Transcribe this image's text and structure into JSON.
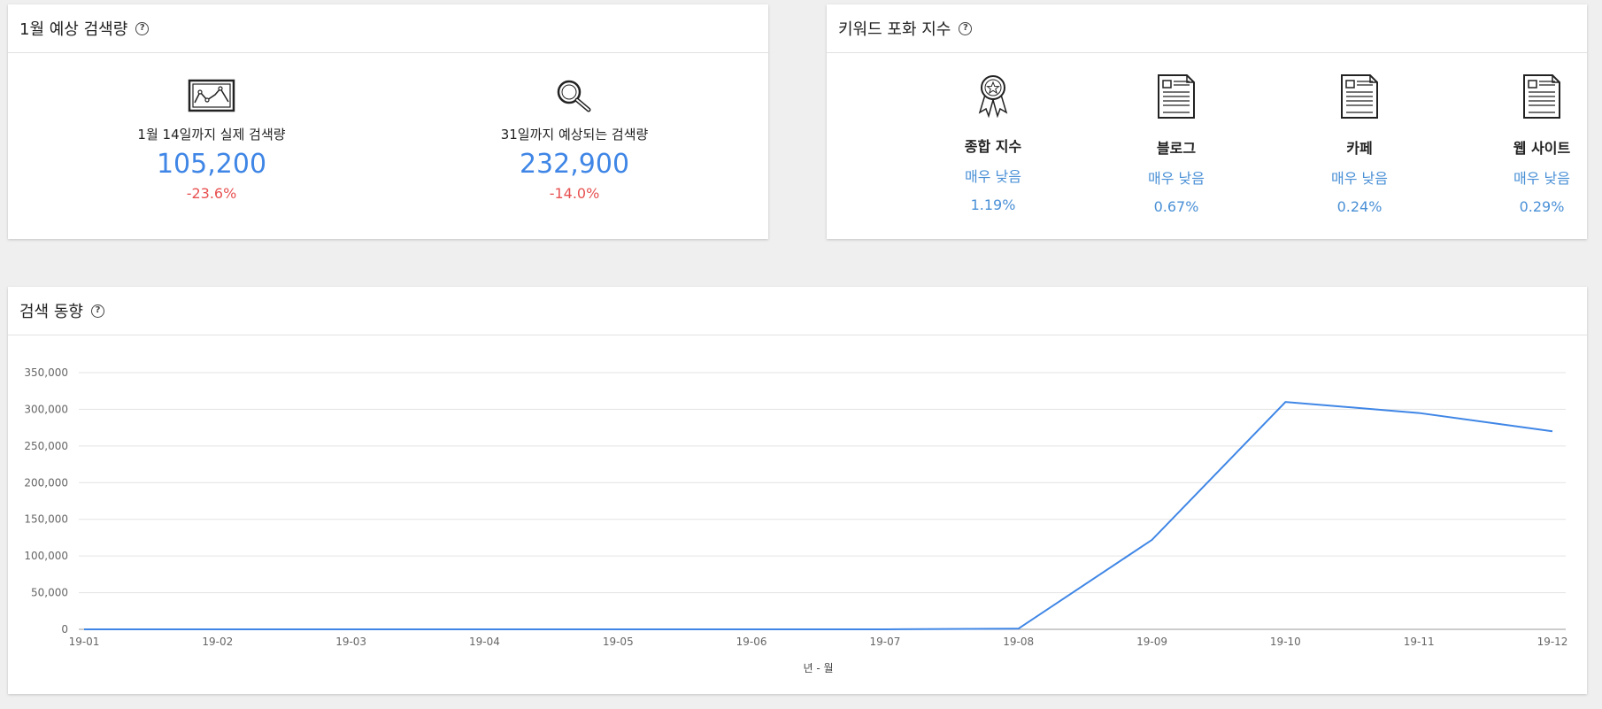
{
  "forecast": {
    "title": "1월 예상 검색량",
    "help": "?",
    "actual": {
      "label": "1월 14일까지 실제 검색량",
      "value": "105,200",
      "delta": "-23.6%",
      "icon": "line-chart-frame-icon"
    },
    "predicted": {
      "label": "31일까지 예상되는 검색량",
      "value": "232,900",
      "delta": "-14.0%",
      "icon": "magnifier-icon"
    },
    "colors": {
      "value": "#3f86e6",
      "delta": "#e85050"
    }
  },
  "saturation": {
    "title": "키워드 포화 지수",
    "help": "?",
    "items": [
      {
        "label": "종합 지수",
        "level": "매우 낮음",
        "pct": "1.19%",
        "icon": "award-ribbon-icon"
      },
      {
        "label": "블로그",
        "level": "매우 낮음",
        "pct": "0.67%",
        "icon": "document-icon"
      },
      {
        "label": "카페",
        "level": "매우 낮음",
        "pct": "0.24%",
        "icon": "document-icon"
      },
      {
        "label": "웹 사이트",
        "level": "매우 낮음",
        "pct": "0.29%",
        "icon": "document-icon"
      }
    ]
  },
  "trend": {
    "title": "검색 동향",
    "help": "?"
  },
  "chart_data": {
    "type": "line",
    "title": "",
    "xlabel": "년 - 월",
    "ylabel": "",
    "x": [
      "19-01",
      "19-02",
      "19-03",
      "19-04",
      "19-05",
      "19-06",
      "19-07",
      "19-08",
      "19-09",
      "19-10",
      "19-11",
      "19-12"
    ],
    "series": [
      {
        "values": [
          0,
          0,
          0,
          0,
          0,
          0,
          0,
          1000,
          122000,
          310000,
          295000,
          270000
        ],
        "color": "#3f86e6"
      }
    ],
    "ylim": [
      0,
      350000
    ],
    "yticks": [
      "0",
      "50,000",
      "100,000",
      "150,000",
      "200,000",
      "250,000",
      "300,000",
      "350,000"
    ],
    "ytick_values": [
      0,
      50000,
      100000,
      150000,
      200000,
      250000,
      300000,
      350000
    ],
    "grid": true
  }
}
